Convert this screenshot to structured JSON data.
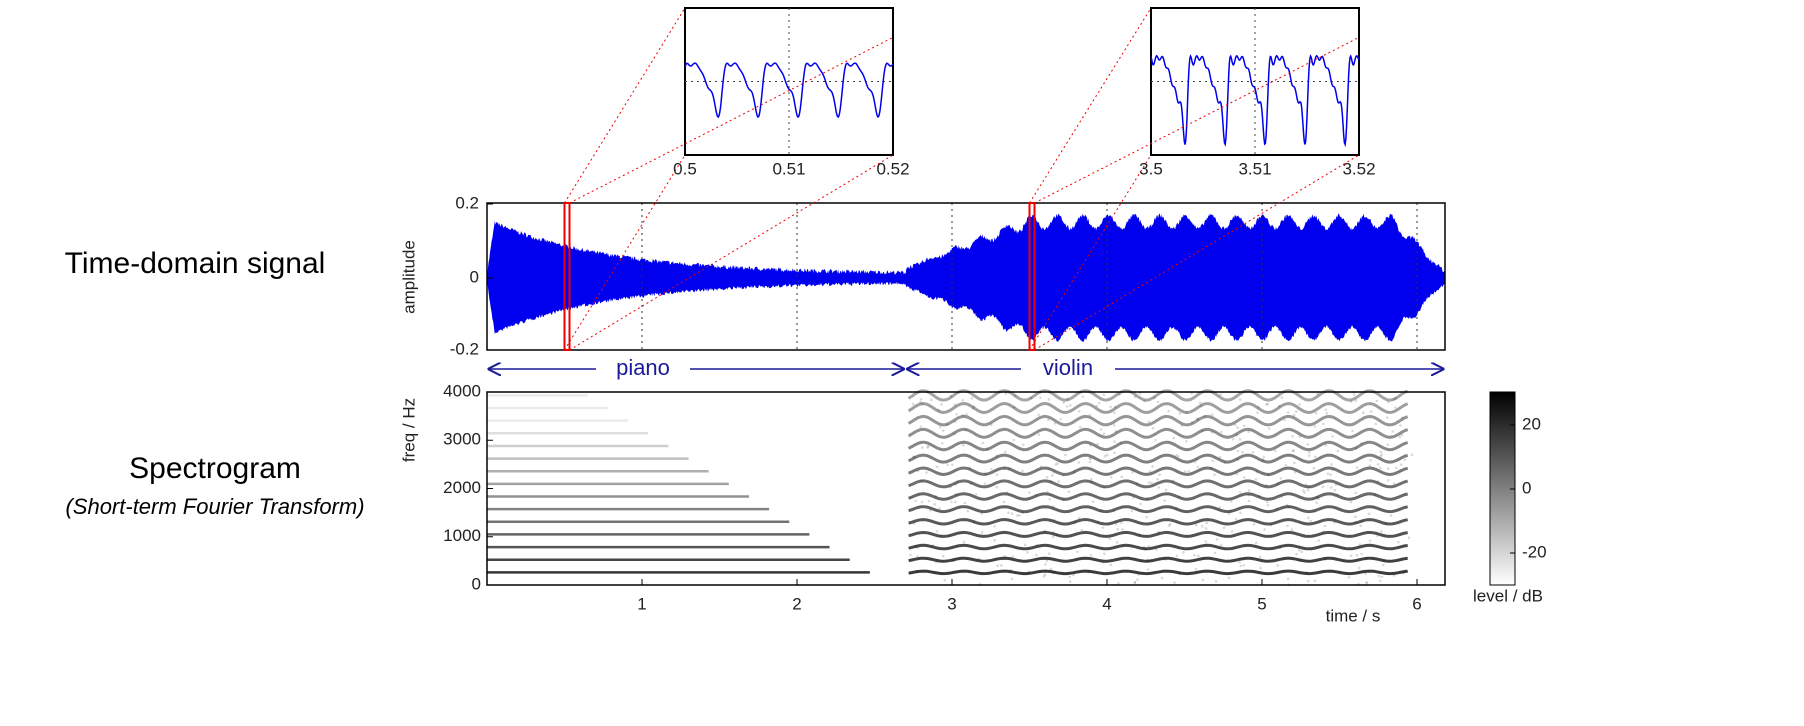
{
  "labels": {
    "time_domain": "Time-domain signal",
    "spectrogram": "Spectrogram",
    "spectrogram_sub": "(Short-term Fourier Transform)"
  },
  "waveform": {
    "ylabel": "amplitude",
    "yticks": [
      "0.2",
      "0",
      "-0.2"
    ]
  },
  "zoom_left": {
    "xticks": [
      "0.5",
      "0.51",
      "0.52"
    ]
  },
  "zoom_right": {
    "xticks": [
      "3.5",
      "3.51",
      "3.52"
    ]
  },
  "segments": [
    "piano",
    "violin"
  ],
  "spectrogram": {
    "ylabel": "freq / Hz",
    "yticks": [
      "4000",
      "3000",
      "2000",
      "1000",
      "0"
    ],
    "xticks": [
      "1",
      "2",
      "3",
      "4",
      "5",
      "6"
    ],
    "xlabel": "time / s"
  },
  "colorbar": {
    "ticks": [
      "20",
      "0",
      "-20"
    ],
    "label": "level / dB"
  }
}
